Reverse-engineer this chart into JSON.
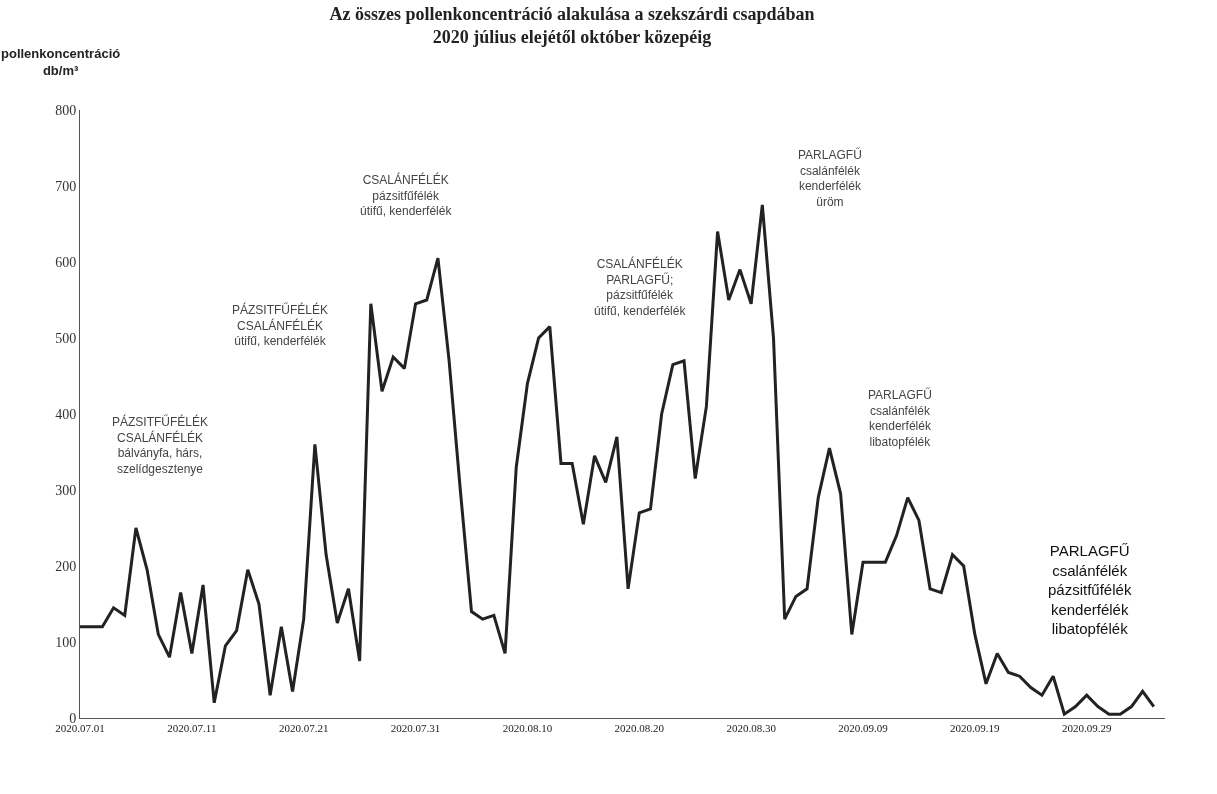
{
  "chart_data": {
    "type": "line",
    "title": "Az összes pollenkoncentráció alakulása a szekszárdi csapdában\n2020 július elejétől október közepéig",
    "ylabel": "pollenkoncentráció\ndb/m³",
    "x": [
      "2020-07-01",
      "2020-07-02",
      "2020-07-03",
      "2020-07-04",
      "2020-07-05",
      "2020-07-06",
      "2020-07-07",
      "2020-07-08",
      "2020-07-09",
      "2020-07-10",
      "2020-07-11",
      "2020-07-12",
      "2020-07-13",
      "2020-07-14",
      "2020-07-15",
      "2020-07-16",
      "2020-07-17",
      "2020-07-18",
      "2020-07-19",
      "2020-07-20",
      "2020-07-21",
      "2020-07-22",
      "2020-07-23",
      "2020-07-24",
      "2020-07-25",
      "2020-07-26",
      "2020-07-27",
      "2020-07-28",
      "2020-07-29",
      "2020-07-30",
      "2020-07-31",
      "2020-08-01",
      "2020-08-02",
      "2020-08-03",
      "2020-08-04",
      "2020-08-05",
      "2020-08-06",
      "2020-08-07",
      "2020-08-08",
      "2020-08-09",
      "2020-08-10",
      "2020-08-11",
      "2020-08-12",
      "2020-08-13",
      "2020-08-14",
      "2020-08-15",
      "2020-08-16",
      "2020-08-17",
      "2020-08-18",
      "2020-08-19",
      "2020-08-20",
      "2020-08-21",
      "2020-08-22",
      "2020-08-23",
      "2020-08-24",
      "2020-08-25",
      "2020-08-26",
      "2020-08-27",
      "2020-08-28",
      "2020-08-29",
      "2020-08-30",
      "2020-08-31",
      "2020-09-01",
      "2020-09-02",
      "2020-09-03",
      "2020-09-04",
      "2020-09-05",
      "2020-09-06",
      "2020-09-07",
      "2020-09-08",
      "2020-09-09",
      "2020-09-10",
      "2020-09-11",
      "2020-09-12",
      "2020-09-13",
      "2020-09-14",
      "2020-09-15",
      "2020-09-16",
      "2020-09-17",
      "2020-09-18",
      "2020-09-19",
      "2020-09-20",
      "2020-09-21",
      "2020-09-22",
      "2020-09-23",
      "2020-09-24",
      "2020-09-25",
      "2020-09-26",
      "2020-09-27",
      "2020-09-28",
      "2020-09-29",
      "2020-09-30",
      "2020-10-01",
      "2020-10-02",
      "2020-10-03",
      "2020-10-04",
      "2020-10-05"
    ],
    "series": [
      {
        "color": "#222222",
        "values": [
          120,
          120,
          120,
          145,
          135,
          250,
          195,
          110,
          80,
          165,
          85,
          175,
          20,
          95,
          115,
          195,
          150,
          30,
          120,
          35,
          130,
          360,
          215,
          125,
          170,
          75,
          545,
          430,
          475,
          460,
          545,
          550,
          605,
          470,
          300,
          140,
          130,
          135,
          85,
          330,
          440,
          500,
          515,
          335,
          335,
          255,
          345,
          310,
          370,
          170,
          270,
          275,
          400,
          465,
          470,
          315,
          410,
          640,
          550,
          590,
          545,
          675,
          500,
          130,
          160,
          170,
          290,
          355,
          295,
          110,
          205,
          205,
          205,
          240,
          290,
          260,
          170,
          165,
          215,
          200,
          110,
          45,
          85,
          60,
          55,
          40,
          30,
          55,
          5,
          15,
          30,
          15,
          5,
          5,
          15,
          35,
          15
        ]
      }
    ],
    "xlim": [
      "2020-07-01",
      "2020-10-06"
    ],
    "xticks": [
      {
        "value": "2020-07-01",
        "label": "2020.07.01"
      },
      {
        "value": "2020-07-11",
        "label": "2020.07.11"
      },
      {
        "value": "2020-07-21",
        "label": "2020.07.21"
      },
      {
        "value": "2020-07-31",
        "label": "2020.07.31"
      },
      {
        "value": "2020-08-10",
        "label": "2020.08.10"
      },
      {
        "value": "2020-08-20",
        "label": "2020.08.20"
      },
      {
        "value": "2020-08-30",
        "label": "2020.08.30"
      },
      {
        "value": "2020-09-09",
        "label": "2020.09.09"
      },
      {
        "value": "2020-09-19",
        "label": "2020.09.19"
      },
      {
        "value": "2020-09-29",
        "label": "2020.09.29"
      }
    ],
    "ylim": [
      0,
      800
    ],
    "yticks": [
      0,
      100,
      200,
      300,
      400,
      500,
      600,
      700,
      800
    ],
    "grid": false,
    "marker": "none",
    "line_style": "solid",
    "annotations": [
      "PÁZSITFŰFÉLÉK\nCSALÁNFÉLÉK\nbálványfa, hárs,\nszelídgesztenye",
      "PÁZSITFŰFÉLÉK\nCSALÁNFÉLÉK\nútifű, kenderfélék",
      "CSALÁNFÉLÉK\npázsitfűfélék\nútifű, kenderfélék",
      "CSALÁNFÉLÉK\nPARLAGFŰ;\npázsitfűfélék\nútifű, kenderfélék",
      "PARLAGFŰ\ncsalánfélék\nkenderfélék\nüröm",
      "PARLAGFŰ\ncsalánfélék\nkenderfélék\nlibatopfélék",
      "PARLAGFŰ\ncsalánfélék\npázsitfűfélék\nkenderfélék\nlibatopfélék"
    ]
  }
}
